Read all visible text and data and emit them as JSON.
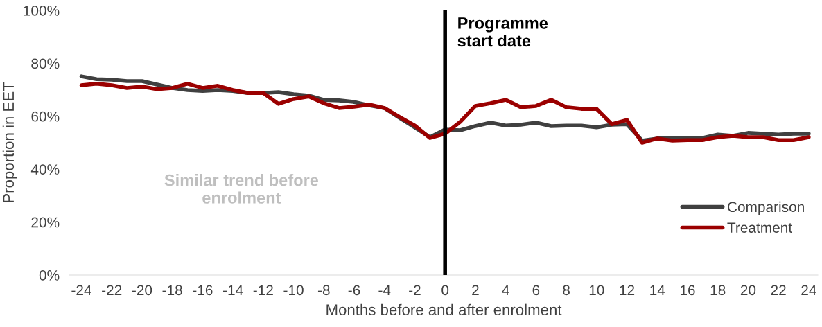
{
  "chart_data": {
    "type": "line",
    "xlabel": "Months before and after enrolment",
    "ylabel": "Proportion in EET",
    "x": [
      -24,
      -23,
      -22,
      -21,
      -20,
      -19,
      -18,
      -17,
      -16,
      -15,
      -14,
      -13,
      -12,
      -11,
      -10,
      -9,
      -8,
      -7,
      -6,
      -5,
      -4,
      -3,
      -2,
      -1,
      0,
      1,
      2,
      3,
      4,
      5,
      6,
      7,
      8,
      9,
      10,
      11,
      12,
      13,
      14,
      15,
      16,
      17,
      18,
      19,
      20,
      21,
      22,
      23,
      24
    ],
    "series": [
      {
        "name": "Comparison",
        "color": "#404040",
        "values": [
          75.1,
          74,
          73.8,
          73.3,
          73.3,
          72,
          70.7,
          69.9,
          69.6,
          69.9,
          69.6,
          68.8,
          68.8,
          69.1,
          68.3,
          67.8,
          66.2,
          66,
          65.4,
          64.1,
          63.1,
          59.4,
          55.8,
          52.1,
          55,
          54.7,
          56.3,
          57.6,
          56.5,
          56.8,
          57.6,
          56.3,
          56.5,
          56.5,
          55.8,
          56.8,
          57,
          50.8,
          51.6,
          51.8,
          51.6,
          51.8,
          53.1,
          52.6,
          53.7,
          53.4,
          53.1,
          53.4,
          53.4
        ]
      },
      {
        "name": "Treatment",
        "color": "#9b0000",
        "values": [
          71.7,
          72.3,
          71.7,
          70.7,
          71.2,
          70.2,
          70.7,
          72.3,
          70.7,
          71.5,
          69.9,
          68.8,
          68.8,
          64.7,
          66.5,
          67.5,
          64.9,
          63.1,
          63.6,
          64.4,
          63.1,
          59.7,
          56.5,
          51.8,
          53.4,
          57.9,
          63.9,
          64.9,
          66.2,
          63.4,
          63.9,
          66.2,
          63.4,
          62.8,
          62.8,
          57,
          58.6,
          50,
          51.6,
          50.8,
          51,
          51,
          52.1,
          52.6,
          52.1,
          52.1,
          51,
          51,
          52.1
        ]
      }
    ],
    "xlim": [
      -24.8,
      24.6
    ],
    "xticks": [
      -24,
      -22,
      -20,
      -18,
      -16,
      -14,
      -12,
      -10,
      -8,
      -6,
      -4,
      -2,
      0,
      2,
      4,
      6,
      8,
      10,
      12,
      14,
      16,
      18,
      20,
      22,
      24
    ],
    "ylim": [
      0,
      100
    ],
    "yticks": [
      {
        "value": 0,
        "label": "0%"
      },
      {
        "value": 20,
        "label": "20%"
      },
      {
        "value": 40,
        "label": "40%"
      },
      {
        "value": 60,
        "label": "60%"
      },
      {
        "value": 80,
        "label": "80%"
      },
      {
        "value": 100,
        "label": "100%"
      }
    ],
    "ref_lines": [
      {
        "axis": "x",
        "value": 0,
        "label": "Programme\nstart date",
        "color": "#000000"
      }
    ],
    "annotations": [
      "Similar trend before\nenrolment"
    ],
    "legend": "bottom right",
    "grid": false,
    "marker": "none",
    "line_style": "solid"
  }
}
